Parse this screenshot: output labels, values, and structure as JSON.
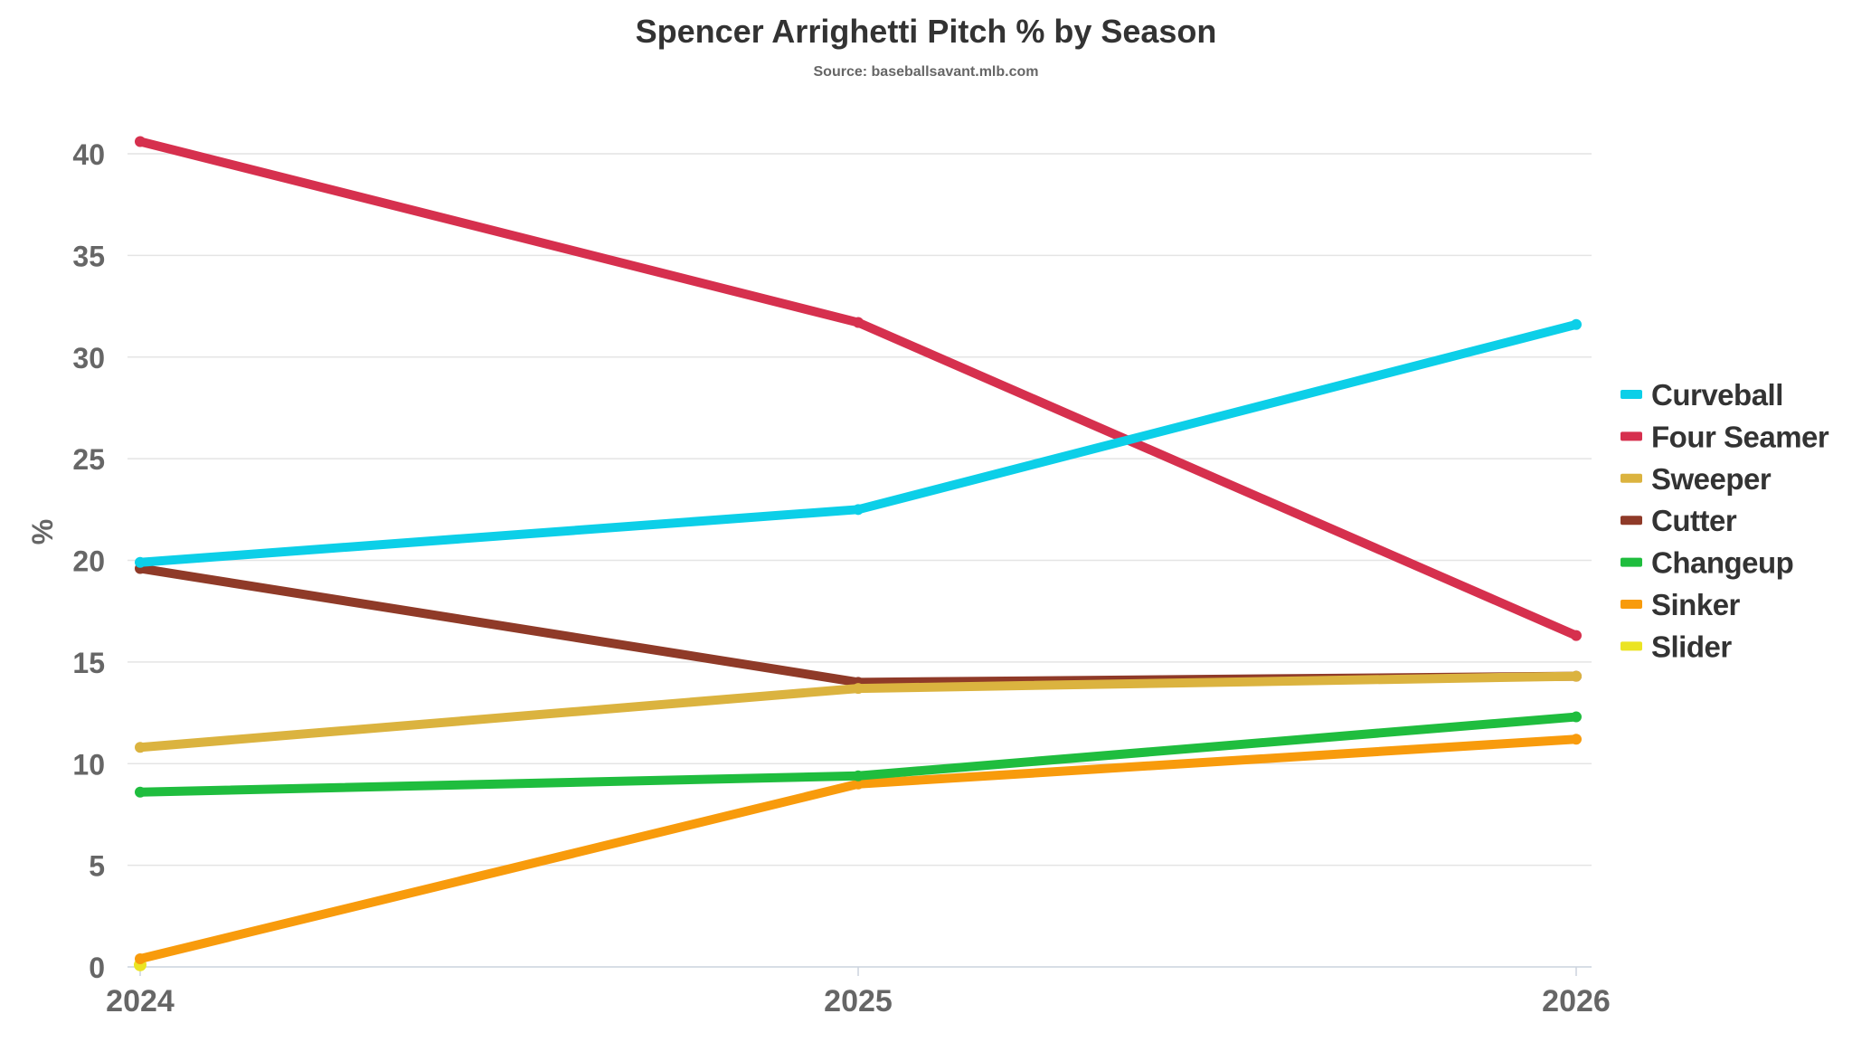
{
  "chart_data": {
    "type": "line",
    "title": "Spencer Arrighetti Pitch % by Season",
    "subtitle": "Source: baseballsavant.mlb.com",
    "xlabel": "",
    "ylabel": "%",
    "x": [
      "2024",
      "2025",
      "2026"
    ],
    "ylim": [
      0,
      40
    ],
    "yticks": [
      "0",
      "5",
      "10",
      "15",
      "20",
      "25",
      "30",
      "35",
      "40"
    ],
    "grid": true,
    "legend_position": "right",
    "series": [
      {
        "name": "Curveball",
        "color": "#0ccfe8",
        "values": [
          19.9,
          22.5,
          31.6
        ]
      },
      {
        "name": "Four Seamer",
        "color": "#d6304e",
        "values": [
          40.6,
          31.7,
          16.3
        ]
      },
      {
        "name": "Sweeper",
        "color": "#dbb33f",
        "values": [
          10.8,
          13.7,
          14.3
        ]
      },
      {
        "name": "Cutter",
        "color": "#8f3a28",
        "values": [
          19.6,
          14.0,
          14.3
        ]
      },
      {
        "name": "Changeup",
        "color": "#1fbd3e",
        "values": [
          8.6,
          9.4,
          12.3
        ]
      },
      {
        "name": "Sinker",
        "color": "#f89b0c",
        "values": [
          0.4,
          9.0,
          11.2
        ]
      },
      {
        "name": "Slider",
        "color": "#ebe423",
        "values": [
          0.1,
          null,
          null
        ]
      }
    ]
  }
}
